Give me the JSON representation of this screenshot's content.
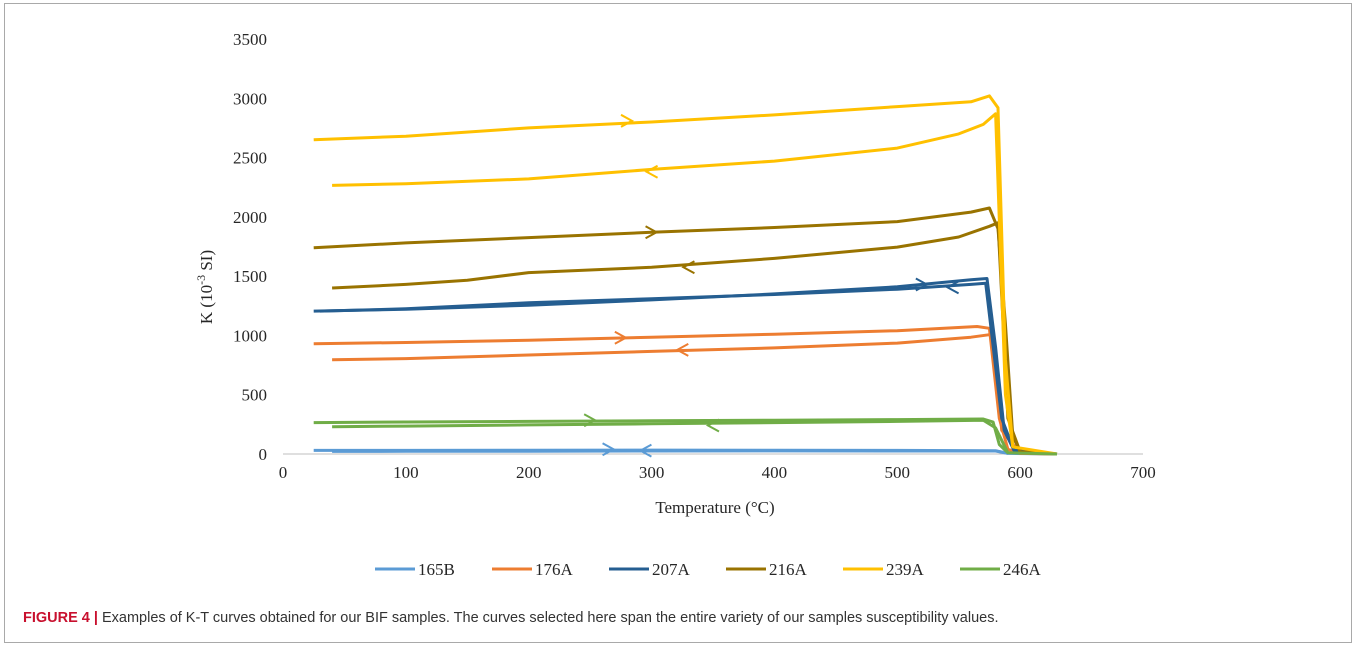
{
  "figure": {
    "caption_label": "FIGURE 4 |",
    "caption_text": " Examples of K-T curves obtained for our BIF samples. The curves selected here span the entire variety of our samples susceptibility values."
  },
  "chart_data": {
    "type": "line",
    "xlabel": "Temperature (°C)",
    "ylabel_main": "K (10",
    "ylabel_sup": "-3",
    "ylabel_end": " SI)",
    "xlim": [
      0,
      700
    ],
    "ylim": [
      0,
      3500
    ],
    "xticks": [
      0,
      100,
      200,
      300,
      400,
      500,
      600,
      700
    ],
    "yticks": [
      0,
      500,
      1000,
      1500,
      2000,
      2500,
      3000,
      3500
    ],
    "grid": false,
    "legend_position": "bottom",
    "series": [
      {
        "name": "165B",
        "color": "#5b9bd5",
        "heating": [
          [
            25,
            30
          ],
          [
            100,
            30
          ],
          [
            200,
            32
          ],
          [
            300,
            33
          ],
          [
            400,
            32
          ],
          [
            500,
            30
          ],
          [
            580,
            28
          ],
          [
            590,
            5
          ],
          [
            630,
            0
          ]
        ],
        "cooling": [
          [
            590,
            5
          ],
          [
            580,
            25
          ],
          [
            500,
            25
          ],
          [
            400,
            26
          ],
          [
            300,
            25
          ],
          [
            200,
            24
          ],
          [
            100,
            23
          ],
          [
            40,
            22
          ]
        ],
        "arrows": [
          [
            265,
            40,
            "right"
          ],
          [
            295,
            28,
            "left"
          ]
        ]
      },
      {
        "name": "176A",
        "color": "#ed7d31",
        "heating": [
          [
            25,
            930
          ],
          [
            100,
            940
          ],
          [
            200,
            960
          ],
          [
            300,
            985
          ],
          [
            400,
            1010
          ],
          [
            500,
            1040
          ],
          [
            565,
            1075
          ],
          [
            575,
            1060
          ],
          [
            583,
            300
          ],
          [
            590,
            40
          ],
          [
            600,
            5
          ],
          [
            630,
            0
          ]
        ],
        "cooling": [
          [
            600,
            5
          ],
          [
            585,
            200
          ],
          [
            578,
            1010
          ],
          [
            560,
            985
          ],
          [
            500,
            935
          ],
          [
            400,
            895
          ],
          [
            300,
            865
          ],
          [
            200,
            835
          ],
          [
            100,
            805
          ],
          [
            40,
            795
          ]
        ],
        "arrows": [
          [
            275,
            980,
            "right"
          ],
          [
            325,
            878,
            "left"
          ]
        ]
      },
      {
        "name": "207A",
        "color": "#255e91",
        "heating": [
          [
            25,
            1205
          ],
          [
            100,
            1220
          ],
          [
            200,
            1255
          ],
          [
            300,
            1300
          ],
          [
            400,
            1350
          ],
          [
            500,
            1410
          ],
          [
            560,
            1470
          ],
          [
            573,
            1480
          ],
          [
            580,
            900
          ],
          [
            587,
            200
          ],
          [
            595,
            30
          ],
          [
            630,
            0
          ]
        ],
        "cooling": [
          [
            595,
            30
          ],
          [
            585,
            300
          ],
          [
            572,
            1440
          ],
          [
            560,
            1430
          ],
          [
            500,
            1390
          ],
          [
            400,
            1345
          ],
          [
            300,
            1310
          ],
          [
            200,
            1275
          ],
          [
            100,
            1225
          ],
          [
            30,
            1205
          ]
        ],
        "arrows": [
          [
            520,
            1430,
            "right"
          ],
          [
            545,
            1405,
            "left"
          ]
        ]
      },
      {
        "name": "216A",
        "color": "#997300",
        "heating": [
          [
            25,
            1740
          ],
          [
            100,
            1780
          ],
          [
            200,
            1825
          ],
          [
            300,
            1870
          ],
          [
            400,
            1910
          ],
          [
            500,
            1960
          ],
          [
            560,
            2040
          ],
          [
            575,
            2075
          ],
          [
            582,
            1900
          ],
          [
            588,
            1100
          ],
          [
            594,
            150
          ],
          [
            600,
            20
          ],
          [
            630,
            0
          ]
        ],
        "cooling": [
          [
            600,
            20
          ],
          [
            590,
            300
          ],
          [
            582,
            1950
          ],
          [
            575,
            1920
          ],
          [
            550,
            1830
          ],
          [
            500,
            1745
          ],
          [
            400,
            1650
          ],
          [
            300,
            1575
          ],
          [
            200,
            1530
          ],
          [
            150,
            1465
          ],
          [
            100,
            1430
          ],
          [
            40,
            1400
          ]
        ],
        "arrows": [
          [
            300,
            1870,
            "right"
          ],
          [
            330,
            1575,
            "left"
          ]
        ]
      },
      {
        "name": "239A",
        "color": "#ffc000",
        "heating": [
          [
            25,
            2650
          ],
          [
            100,
            2680
          ],
          [
            200,
            2750
          ],
          [
            300,
            2800
          ],
          [
            400,
            2860
          ],
          [
            500,
            2930
          ],
          [
            560,
            2970
          ],
          [
            575,
            3020
          ],
          [
            582,
            2920
          ],
          [
            588,
            800
          ],
          [
            594,
            60
          ],
          [
            630,
            0
          ]
        ],
        "cooling": [
          [
            594,
            60
          ],
          [
            588,
            500
          ],
          [
            580,
            2870
          ],
          [
            570,
            2780
          ],
          [
            550,
            2700
          ],
          [
            500,
            2580
          ],
          [
            400,
            2470
          ],
          [
            300,
            2400
          ],
          [
            200,
            2320
          ],
          [
            100,
            2280
          ],
          [
            40,
            2265
          ]
        ],
        "arrows": [
          [
            280,
            2810,
            "right"
          ],
          [
            300,
            2380,
            "left"
          ]
        ]
      },
      {
        "name": "246A",
        "color": "#70ad47",
        "heating": [
          [
            25,
            265
          ],
          [
            100,
            270
          ],
          [
            200,
            275
          ],
          [
            300,
            280
          ],
          [
            400,
            285
          ],
          [
            500,
            290
          ],
          [
            570,
            295
          ],
          [
            578,
            270
          ],
          [
            583,
            80
          ],
          [
            590,
            10
          ],
          [
            630,
            0
          ]
        ],
        "cooling": [
          [
            590,
            10
          ],
          [
            580,
            220
          ],
          [
            570,
            285
          ],
          [
            500,
            275
          ],
          [
            400,
            265
          ],
          [
            300,
            255
          ],
          [
            200,
            245
          ],
          [
            100,
            235
          ],
          [
            40,
            230
          ]
        ],
        "arrows": [
          [
            250,
            285,
            "right"
          ],
          [
            350,
            240,
            "left"
          ]
        ]
      }
    ]
  }
}
